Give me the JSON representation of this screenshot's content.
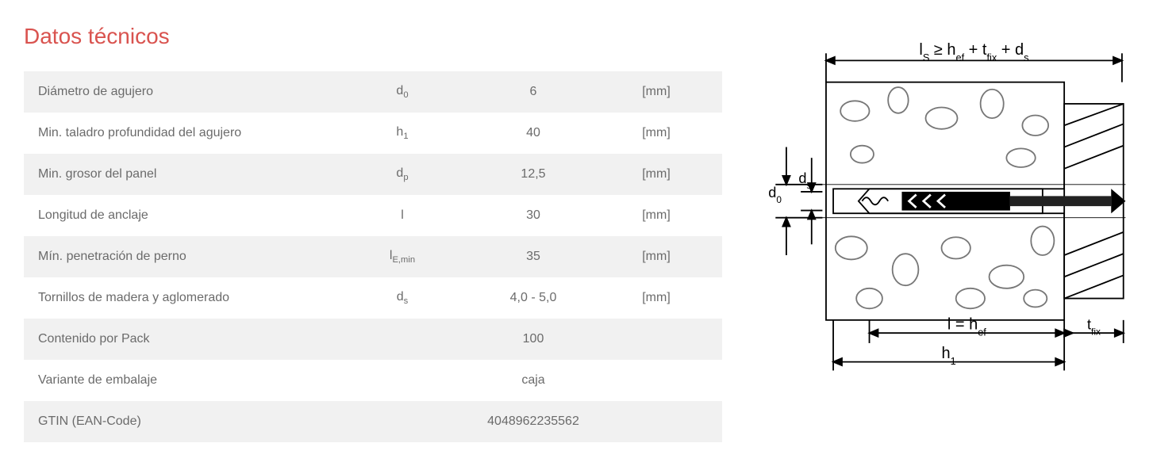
{
  "title": {
    "text": "Datos técnicos",
    "color": "#d9534f"
  },
  "table": {
    "rowOddBg": "#f1f1f1",
    "rowEvenBg": "#ffffff",
    "textColor": "#6b6b6b",
    "rows": [
      {
        "label": "Diámetro de agujero",
        "symBase": "d",
        "symSub": "0",
        "value": "6",
        "unit": "[mm]"
      },
      {
        "label": "Min. taladro profundidad del agujero",
        "symBase": "h",
        "symSub": "1",
        "value": "40",
        "unit": "[mm]"
      },
      {
        "label": "Min. grosor del panel",
        "symBase": "d",
        "symSub": "p",
        "value": "12,5",
        "unit": "[mm]"
      },
      {
        "label": "Longitud de anclaje",
        "symBase": "l",
        "symSub": "",
        "value": "30",
        "unit": "[mm]"
      },
      {
        "label": "Mín. penetración de perno",
        "symBase": "l",
        "symSub": "E,min",
        "value": "35",
        "unit": "[mm]"
      },
      {
        "label": "Tornillos de madera y aglomerado",
        "symBase": "d",
        "symSub": "s",
        "value": "4,0 - 5,0",
        "unit": "[mm]"
      },
      {
        "label": "Contenido por Pack",
        "symBase": "",
        "symSub": "",
        "value": "100",
        "unit": ""
      },
      {
        "label": "Variante de embalaje",
        "symBase": "",
        "symSub": "",
        "value": "caja",
        "unit": ""
      },
      {
        "label": "GTIN (EAN-Code)",
        "symBase": "",
        "symSub": "",
        "value": "4048962235562",
        "unit": ""
      }
    ]
  },
  "diagram": {
    "stroke": "#000000",
    "strokeWidth": 2,
    "fontFamily": "Arial",
    "labels": {
      "top": "lₛ ≥ h_ef + t_fix + d_s",
      "leftTop": "d₀",
      "leftMid": "dₛ",
      "bottomMid": "l = h_ef",
      "bottomLong": "h₁",
      "rightBottom": "t_fix"
    },
    "colors": {
      "wallFill": "#ffffff",
      "aggregateStroke": "#6b6b6b",
      "anchorFill": "#000000",
      "screwFill": "#222222",
      "hatchStroke": "#000000"
    }
  }
}
